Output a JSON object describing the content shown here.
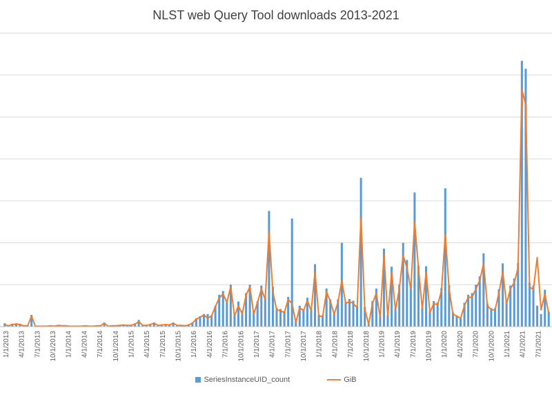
{
  "chart_data": {
    "type": "bar",
    "title": "NLST web Query Tool downloads 2013-2021",
    "xlabel": "",
    "ylabel": "",
    "grid": true,
    "legend_position": "bottom",
    "tick_labels": [
      "1/1/2013",
      "4/1/2013",
      "7/1/2013",
      "10/1/2013",
      "1/1/2014",
      "4/1/2014",
      "7/1/2014",
      "10/1/2014",
      "1/1/2015",
      "4/1/2015",
      "7/1/2015",
      "10/1/2015",
      "1/1/2016",
      "4/1/2016",
      "7/1/2016",
      "10/1/2016",
      "1/1/2017",
      "4/1/2017",
      "7/1/2017",
      "10/1/2017",
      "1/1/2018",
      "4/1/2018",
      "7/1/2018",
      "10/1/2018",
      "1/1/2019",
      "4/1/2019",
      "7/1/2019",
      "10/1/2019",
      "1/1/2020",
      "4/1/2020",
      "7/1/2020",
      "10/1/2020",
      "1/1/2021",
      "4/1/2021",
      "7/1/2021"
    ],
    "ylim": [
      0,
      7
    ],
    "series": [
      {
        "name": "SeriesInstanceUID_count",
        "kind": "bar",
        "color": "#5B9BD5",
        "values": [
          0.08,
          0.03,
          0.07,
          0.08,
          0.07,
          0.02,
          0.02,
          0.28,
          0.01,
          0.01,
          0.01,
          0.01,
          0.02,
          0.01,
          0.04,
          0.03,
          0.02,
          0.01,
          0.01,
          0.01,
          0.01,
          0.02,
          0.01,
          0.01,
          0.02,
          0.02,
          0.1,
          0.01,
          0.02,
          0.03,
          0.04,
          0.05,
          0.03,
          0.04,
          0.08,
          0.16,
          0.03,
          0.03,
          0.06,
          0.1,
          0.03,
          0.05,
          0.06,
          0.05,
          0.1,
          0.03,
          0.04,
          0.02,
          0.05,
          0.1,
          0.2,
          0.25,
          0.3,
          0.3,
          0.26,
          0.5,
          0.76,
          0.85,
          0.63,
          1.0,
          0.31,
          0.6,
          0.38,
          0.8,
          1.0,
          0.39,
          0.61,
          0.98,
          0.7,
          2.76,
          0.95,
          0.44,
          0.42,
          0.37,
          0.71,
          2.58,
          0.13,
          0.5,
          0.42,
          0.69,
          0.42,
          1.49,
          0.28,
          0.27,
          0.91,
          0.65,
          0.33,
          0.65,
          2.0,
          0.6,
          0.66,
          0.62,
          0.5,
          3.55,
          0.47,
          0.06,
          0.61,
          0.91,
          0.26,
          1.86,
          0.28,
          1.43,
          0.45,
          1.0,
          2.0,
          1.59,
          1.0,
          3.2,
          1.45,
          0.46,
          1.44,
          0.38,
          0.61,
          0.58,
          0.92,
          3.3,
          0.99,
          0.34,
          0.27,
          0.21,
          0.57,
          0.76,
          0.8,
          1.0,
          1.2,
          1.75,
          0.55,
          0.44,
          0.44,
          0.89,
          1.51,
          0.62,
          0.98,
          1.15,
          1.52,
          6.34,
          6.15,
          1.05,
          0.98,
          0.5,
          0.3,
          0.88,
          0.36
        ],
        "values_omitted_note": ""
      },
      {
        "name": "GiB",
        "kind": "line",
        "color": "#ED7D31",
        "values": [
          0.05,
          0.02,
          0.05,
          0.06,
          0.05,
          0.02,
          0.02,
          0.25,
          0.01,
          0.01,
          0.01,
          0.01,
          0.02,
          0.01,
          0.03,
          0.02,
          0.02,
          0.01,
          0.01,
          0.01,
          0.01,
          0.02,
          0.01,
          0.01,
          0.02,
          0.02,
          0.08,
          0.01,
          0.02,
          0.02,
          0.03,
          0.04,
          0.03,
          0.03,
          0.06,
          0.12,
          0.03,
          0.03,
          0.05,
          0.08,
          0.03,
          0.04,
          0.05,
          0.04,
          0.08,
          0.03,
          0.03,
          0.02,
          0.04,
          0.08,
          0.18,
          0.22,
          0.28,
          0.2,
          0.26,
          0.48,
          0.68,
          0.78,
          0.58,
          0.95,
          0.25,
          0.5,
          0.3,
          0.75,
          0.95,
          0.3,
          0.58,
          0.9,
          0.65,
          2.26,
          0.82,
          0.4,
          0.38,
          0.33,
          0.65,
          0.55,
          0.1,
          0.45,
          0.38,
          0.62,
          0.38,
          1.3,
          0.25,
          0.24,
          0.83,
          0.6,
          0.3,
          0.58,
          1.1,
          0.55,
          0.6,
          0.55,
          0.45,
          2.6,
          0.42,
          0.05,
          0.55,
          0.8,
          0.22,
          1.7,
          0.25,
          1.3,
          0.4,
          0.9,
          1.7,
          1.4,
          0.9,
          2.5,
          1.4,
          0.42,
          1.3,
          0.34,
          0.55,
          0.52,
          0.85,
          2.2,
          0.9,
          0.3,
          0.25,
          0.2,
          0.5,
          0.7,
          0.7,
          0.9,
          1.1,
          1.5,
          0.5,
          0.4,
          0.4,
          0.8,
          1.3,
          0.55,
          0.9,
          1.05,
          1.4,
          5.65,
          5.3,
          0.95,
          0.88,
          1.65,
          0.4,
          0.78,
          0.32
        ]
      }
    ],
    "legend": [
      "SeriesInstanceUID_count",
      "GiB"
    ]
  }
}
